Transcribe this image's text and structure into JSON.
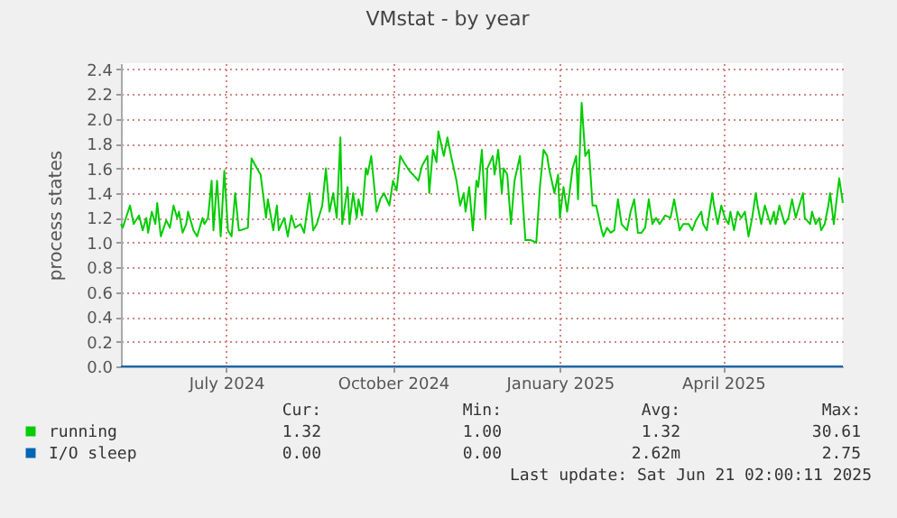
{
  "chart_data": {
    "type": "line",
    "title": "VMstat - by year",
    "ylabel": "process states",
    "xlim": [
      "2024-05-19",
      "2025-06-21"
    ],
    "ylim": [
      0,
      2.45
    ],
    "xticks": [
      {
        "value": "2024-07-16",
        "label": "July 2024"
      },
      {
        "value": "2024-10-16",
        "label": "October 2024"
      },
      {
        "value": "2025-01-16",
        "label": "January 2025"
      },
      {
        "value": "2025-04-16",
        "label": "April 2025"
      }
    ],
    "yticks": [
      {
        "value": 0,
        "label": "0.0"
      },
      {
        "value": 0.2,
        "label": "0.2"
      },
      {
        "value": 0.4,
        "label": "0.4"
      },
      {
        "value": 0.6,
        "label": "0.6"
      },
      {
        "value": 0.8,
        "label": "0.8"
      },
      {
        "value": 1,
        "label": "1.0"
      },
      {
        "value": 1.2,
        "label": "1.2"
      },
      {
        "value": 1.4,
        "label": "1.4"
      },
      {
        "value": 1.6,
        "label": "1.6"
      },
      {
        "value": 1.8,
        "label": "1.8"
      },
      {
        "value": 2,
        "label": "2.0"
      },
      {
        "value": 2.2,
        "label": "2.2"
      },
      {
        "value": 2.4,
        "label": "2.4"
      }
    ],
    "grid": true,
    "legend": "bottom",
    "annotations": [
      "Cur:",
      "Min:",
      "Avg:",
      "Max:",
      "1.32",
      "1.00",
      "1.32",
      "30.61",
      "0.00",
      "0.00",
      "2.62m",
      "2.75",
      "Last update: Sat Jun 21 02:00:11 2025"
    ],
    "series": [
      {
        "name": "I/O sleep",
        "color": "#0066b3",
        "x": [
          "2024-05-19",
          "2024-09-01",
          "2025-01-01",
          "2025-04-01",
          "2025-06-21"
        ],
        "values": [
          0,
          0,
          0,
          0,
          0
        ]
      },
      {
        "name": "running",
        "color": "#00cc00",
        "x": [
          "2024-05-19",
          "2024-05-20",
          "2024-05-24",
          "2024-05-26",
          "2024-05-29",
          "2024-05-31",
          "2024-06-02",
          "2024-06-03",
          "2024-06-05",
          "2024-06-07",
          "2024-06-08",
          "2024-06-10",
          "2024-06-13",
          "2024-06-15",
          "2024-06-17",
          "2024-06-19",
          "2024-06-20",
          "2024-06-22",
          "2024-06-24",
          "2024-06-25",
          "2024-06-28",
          "2024-06-30",
          "2024-07-03",
          "2024-07-04",
          "2024-07-06",
          "2024-07-08",
          "2024-07-09",
          "2024-07-11",
          "2024-07-13",
          "2024-07-15",
          "2024-07-17",
          "2024-07-19",
          "2024-07-21",
          "2024-07-23",
          "2024-07-24",
          "2024-07-28",
          "2024-07-30",
          "2024-08-02",
          "2024-08-04",
          "2024-08-07",
          "2024-08-08",
          "2024-08-11",
          "2024-08-13",
          "2024-08-14",
          "2024-08-17",
          "2024-08-19",
          "2024-08-21",
          "2024-08-23",
          "2024-08-26",
          "2024-08-28",
          "2024-08-31",
          "2024-09-02",
          "2024-09-04",
          "2024-09-07",
          "2024-09-09",
          "2024-09-11",
          "2024-09-13",
          "2024-09-15",
          "2024-09-17",
          "2024-09-18",
          "2024-09-21",
          "2024-09-22",
          "2024-09-24",
          "2024-09-26",
          "2024-09-27",
          "2024-09-29",
          "2024-10-01",
          "2024-10-02",
          "2024-10-04",
          "2024-10-06",
          "2024-10-07",
          "2024-10-09",
          "2024-10-11",
          "2024-10-14",
          "2024-10-16",
          "2024-10-18",
          "2024-10-20",
          "2024-10-22",
          "2024-10-25",
          "2024-10-27",
          "2024-10-30",
          "2024-11-01",
          "2024-11-04",
          "2024-11-05",
          "2024-11-07",
          "2024-11-09",
          "2024-11-10",
          "2024-11-13",
          "2024-11-15",
          "2024-11-17",
          "2024-11-20",
          "2024-11-22",
          "2024-11-24",
          "2024-11-25",
          "2024-11-27",
          "2024-11-29",
          "2024-12-01",
          "2024-12-02",
          "2024-12-04",
          "2024-12-06",
          "2024-12-07",
          "2024-12-10",
          "2024-12-11",
          "2024-12-13",
          "2024-12-15",
          "2024-12-16",
          "2024-12-18",
          "2024-12-20",
          "2024-12-22",
          "2024-12-25",
          "2024-12-26",
          "2024-12-28",
          "2024-12-31",
          "2025-01-03",
          "2025-01-05",
          "2025-01-07",
          "2025-01-09",
          "2025-01-10",
          "2025-01-13",
          "2025-01-15",
          "2025-01-16",
          "2025-01-18",
          "2025-01-20",
          "2025-01-23",
          "2025-01-25",
          "2025-01-26",
          "2025-01-27",
          "2025-01-28",
          "2025-01-30",
          "2025-02-01",
          "2025-02-03",
          "2025-02-05",
          "2025-02-08",
          "2025-02-09",
          "2025-02-11",
          "2025-02-13",
          "2025-02-15",
          "2025-02-17",
          "2025-02-19",
          "2025-02-22",
          "2025-02-24",
          "2025-02-26",
          "2025-02-28",
          "2025-03-02",
          "2025-03-04",
          "2025-03-06",
          "2025-03-08",
          "2025-03-10",
          "2025-03-12",
          "2025-03-15",
          "2025-03-18",
          "2025-03-20",
          "2025-03-23",
          "2025-03-25",
          "2025-03-28",
          "2025-03-30",
          "2025-04-01",
          "2025-04-04",
          "2025-04-05",
          "2025-04-07",
          "2025-04-10",
          "2025-04-11",
          "2025-04-13",
          "2025-04-15",
          "2025-04-17",
          "2025-04-19",
          "2025-04-20",
          "2025-04-22",
          "2025-04-24",
          "2025-04-26",
          "2025-04-28",
          "2025-04-30",
          "2025-05-02",
          "2025-05-04",
          "2025-05-05",
          "2025-05-07",
          "2025-05-09",
          "2025-05-10",
          "2025-05-12",
          "2025-05-14",
          "2025-05-15",
          "2025-05-17",
          "2025-05-20",
          "2025-05-22",
          "2025-05-24",
          "2025-05-26",
          "2025-05-28",
          "2025-05-30",
          "2025-05-31",
          "2025-06-03",
          "2025-06-04",
          "2025-06-06",
          "2025-06-08",
          "2025-06-09",
          "2025-06-11",
          "2025-06-13",
          "2025-06-14",
          "2025-06-16",
          "2025-06-18",
          "2025-06-19",
          "2025-06-21"
        ],
        "values": [
          1.15,
          1.12,
          1.3,
          1.15,
          1.22,
          1.1,
          1.2,
          1.08,
          1.25,
          1.15,
          1.32,
          1.05,
          1.18,
          1.12,
          1.3,
          1.2,
          1.25,
          1.08,
          1.15,
          1.25,
          1.1,
          1.05,
          1.2,
          1.15,
          1.2,
          1.5,
          1.1,
          1.5,
          1.05,
          1.58,
          1.1,
          1.05,
          1.4,
          1.1,
          1.1,
          1.12,
          1.68,
          1.6,
          1.55,
          1.2,
          1.35,
          1.1,
          1.3,
          1.1,
          1.2,
          1.05,
          1.22,
          1.12,
          1.15,
          1.08,
          1.4,
          1.1,
          1.15,
          1.3,
          1.6,
          1.25,
          1.4,
          1.2,
          1.85,
          1.15,
          1.45,
          1.15,
          1.4,
          1.2,
          1.35,
          1.22,
          1.6,
          1.55,
          1.7,
          1.4,
          1.25,
          1.35,
          1.4,
          1.3,
          1.5,
          1.42,
          1.7,
          1.65,
          1.58,
          1.55,
          1.5,
          1.62,
          1.7,
          1.4,
          1.75,
          1.65,
          1.9,
          1.7,
          1.85,
          1.7,
          1.5,
          1.3,
          1.4,
          1.25,
          1.45,
          1.1,
          1.5,
          1.45,
          1.75,
          1.2,
          1.6,
          1.7,
          1.55,
          1.75,
          1.4,
          1.6,
          1.55,
          1.15,
          1.5,
          1.7,
          1.45,
          1.02,
          1.02,
          1.0,
          1.45,
          1.75,
          1.7,
          1.6,
          1.4,
          1.55,
          1.2,
          1.45,
          1.25,
          1.6,
          1.7,
          1.35,
          1.75,
          2.13,
          1.7,
          1.75,
          1.3,
          1.3,
          1.1,
          1.05,
          1.12,
          1.08,
          1.1,
          1.35,
          1.15,
          1.1,
          1.25,
          1.35,
          1.08,
          1.08,
          1.12,
          1.35,
          1.15,
          1.2,
          1.15,
          1.22,
          1.2,
          1.35,
          1.1,
          1.15,
          1.15,
          1.1,
          1.18,
          1.25,
          1.15,
          1.1,
          1.4,
          1.3,
          1.15,
          1.3,
          1.2,
          1.15,
          1.25,
          1.1,
          1.25,
          1.2,
          1.25,
          1.05,
          1.2,
          1.4,
          1.3,
          1.15,
          1.3,
          1.25,
          1.15,
          1.25,
          1.15,
          1.3,
          1.15,
          1.2,
          1.35,
          1.2,
          1.3,
          1.4,
          1.2,
          1.15,
          1.25,
          1.15,
          1.2,
          1.1,
          1.15,
          1.3,
          1.4,
          1.15,
          1.4,
          1.52,
          1.32
        ]
      }
    ]
  }
}
